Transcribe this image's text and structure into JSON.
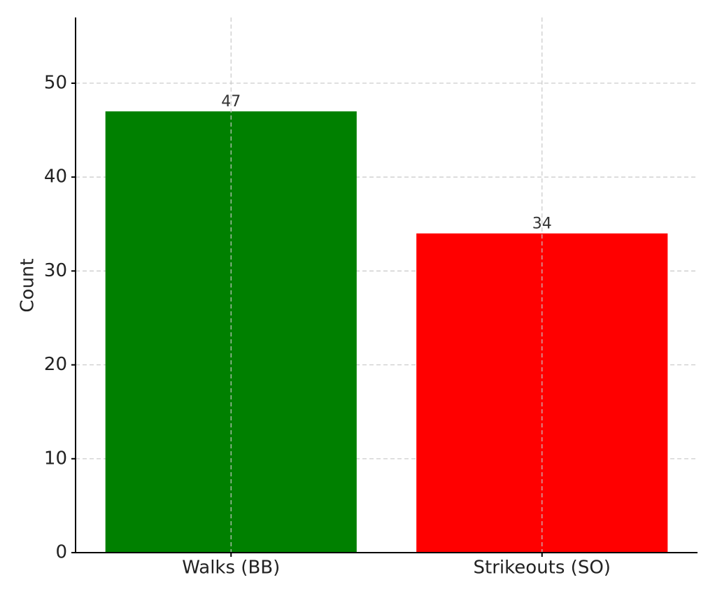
{
  "chart_data": {
    "type": "bar",
    "ylabel": "Count",
    "categories": [
      "Walks (BB)",
      "Strikeouts (SO)"
    ],
    "values": [
      47,
      34
    ],
    "colors": [
      "#008000",
      "#ff0000"
    ],
    "ylim": [
      0,
      57
    ],
    "yticks": [
      0,
      10,
      20,
      30,
      40,
      50
    ],
    "grid": true
  }
}
